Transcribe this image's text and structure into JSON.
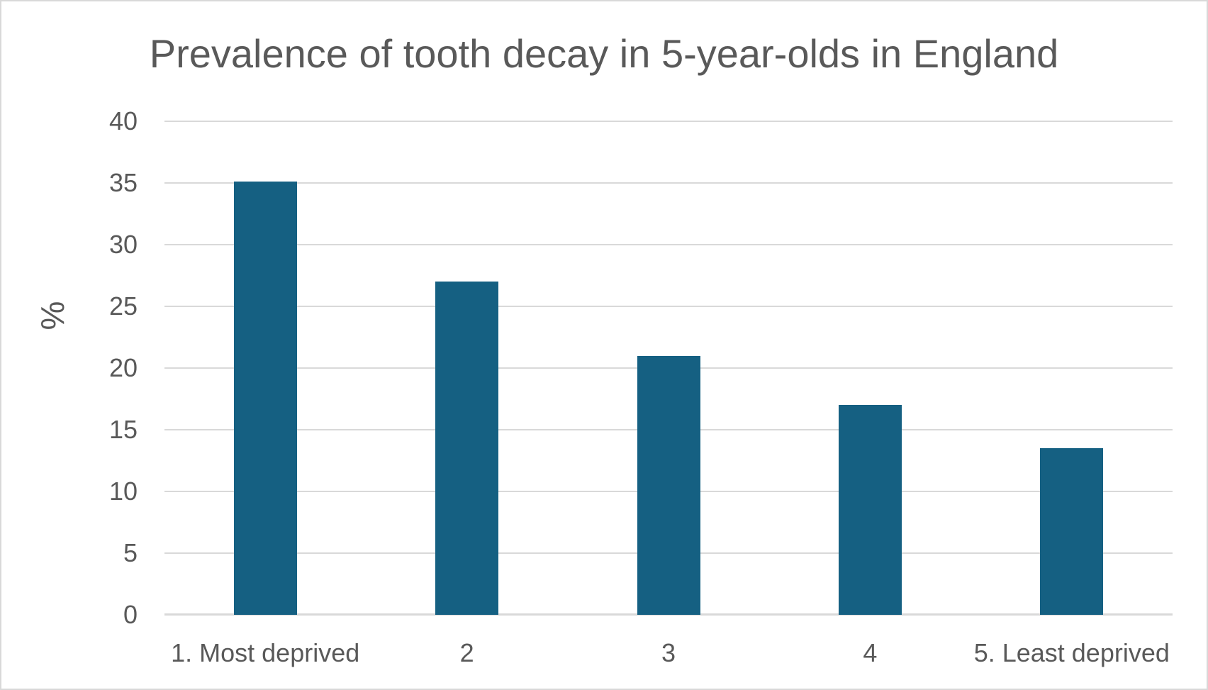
{
  "title": "Prevalence of tooth decay in 5-year-olds in England",
  "colors": {
    "bar": "#156082",
    "gridline": "#D9D9D9",
    "axis_line": "#D9D9D9",
    "text": "#595959",
    "frame_border": "#D9D9D9",
    "background": "#FFFFFF"
  },
  "chart_data": {
    "type": "bar",
    "title": "Prevalence of tooth decay in 5-year-olds in England",
    "categories": [
      "1. Most deprived",
      "2",
      "3",
      "4",
      "5. Least deprived"
    ],
    "values": [
      35.1,
      27,
      21,
      17,
      13.5
    ],
    "xlabel": "",
    "ylabel": "%",
    "ylim": [
      0,
      40
    ],
    "yticks": [
      0,
      5,
      10,
      15,
      20,
      25,
      30,
      35,
      40
    ],
    "grid": "horizontal-only",
    "legend": "none"
  }
}
